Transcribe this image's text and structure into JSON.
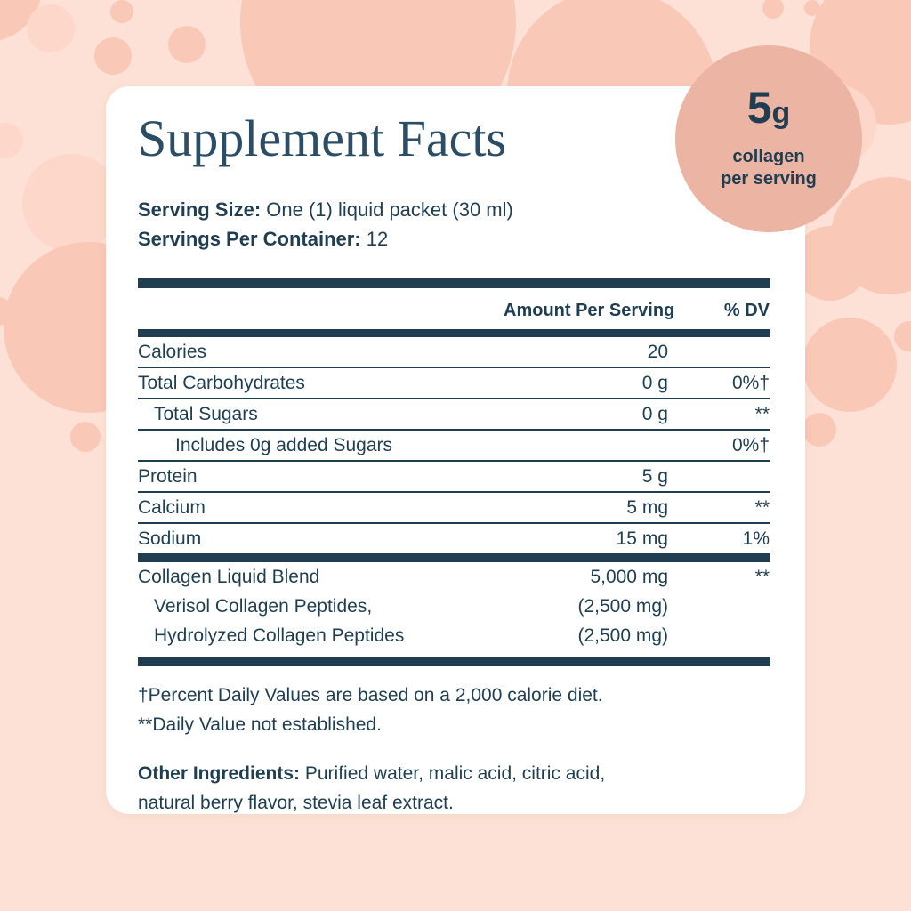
{
  "title": "Supplement Facts",
  "badge": {
    "value": "5",
    "unit": "g",
    "line1": "collagen",
    "line2": "per serving"
  },
  "serving": {
    "size_label": "Serving Size:",
    "size_value": " One (1) liquid packet (30 ml)",
    "count_label": "Servings Per Container:",
    "count_value": " 12"
  },
  "table": {
    "amount_header": "Amount Per Serving",
    "dv_header": "% DV",
    "rows": [
      {
        "name": "Calories",
        "amount": "20",
        "dv": "",
        "indent": 0,
        "sep": "thin"
      },
      {
        "name": "Total Carbohydrates",
        "amount": "0 g",
        "dv": "0%†",
        "indent": 0,
        "sep": "thin"
      },
      {
        "name": "Total Sugars",
        "amount": "0 g",
        "dv": "**",
        "indent": 1,
        "sep": "thin"
      },
      {
        "name": "Includes 0g added Sugars",
        "amount": "",
        "dv": "0%†",
        "indent": 2,
        "sep": "thin"
      },
      {
        "name": "Protein",
        "amount": "5 g",
        "dv": "",
        "indent": 0,
        "sep": "thin"
      },
      {
        "name": "Calcium",
        "amount": "5 mg",
        "dv": "**",
        "indent": 0,
        "sep": "thin"
      },
      {
        "name": "Sodium",
        "amount": "15 mg",
        "dv": "1%",
        "indent": 0,
        "sep": "thick"
      },
      {
        "name": "Collagen Liquid Blend",
        "amount": "5,000 mg",
        "dv": "**",
        "indent": 0,
        "sep": "none"
      },
      {
        "name": "Verisol Collagen Peptides,",
        "amount": "(2,500 mg)",
        "dv": "",
        "indent": 1,
        "sep": "none"
      },
      {
        "name": "Hydrolyzed Collagen Peptides",
        "amount": "(2,500 mg)",
        "dv": "",
        "indent": 1,
        "sep": "thick-end"
      }
    ]
  },
  "footnotes": {
    "fn1": "†Percent Daily Values are based on a 2,000 calorie diet.",
    "fn2": "**Daily Value not established."
  },
  "other_ingredients": {
    "label": "Other Ingredients:",
    "line1": " Purified water, malic acid, citric acid,",
    "line2": "natural berry flavor, stevia leaf extract."
  },
  "colors": {
    "background": "#fde1d6",
    "bubble_dark": "#fac8b6",
    "bubble_light": "#fdd7c9",
    "card": "#ffffff",
    "navy": "#1f3e51",
    "badge": "#ecb4a3",
    "title_navy": "#2b4e66"
  }
}
